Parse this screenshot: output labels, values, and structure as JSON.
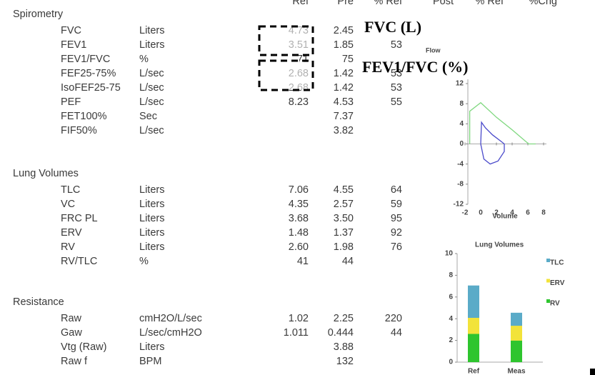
{
  "header": [
    "Ref",
    "Pre",
    "% Ref",
    "Post",
    "% Ref",
    "%Chg"
  ],
  "sections": [
    {
      "title": "Spirometry",
      "rows": [
        [
          "FVC",
          "Liters",
          "4.73",
          "2.45",
          null
        ],
        [
          "FEV1",
          "Liters",
          "3.51",
          "1.85",
          "53"
        ],
        [
          "FEV1/FVC",
          "%",
          "71",
          "75",
          null
        ],
        [
          "FEF25-75%",
          "L/sec",
          "2.68",
          "1.42",
          "53"
        ],
        [
          "IsoFEF25-75",
          "L/sec",
          "2.68",
          "1.42",
          "53"
        ],
        [
          "PEF",
          "L/sec",
          "8.23",
          "4.53",
          "55"
        ],
        [
          "FET100%",
          "Sec",
          null,
          "7.37",
          null
        ],
        [
          "FIF50%",
          "L/sec",
          null,
          "3.82",
          null
        ]
      ]
    },
    {
      "title": "Lung Volumes",
      "rows": [
        [
          "TLC",
          "Liters",
          "7.06",
          "4.55",
          "64"
        ],
        [
          "VC",
          "Liters",
          "4.35",
          "2.57",
          "59"
        ],
        [
          "FRC PL",
          "Liters",
          "3.68",
          "3.50",
          "95"
        ],
        [
          "ERV",
          "Liters",
          "1.48",
          "1.37",
          "92"
        ],
        [
          "RV",
          "Liters",
          "2.60",
          "1.98",
          "76"
        ],
        [
          "RV/TLC",
          "%",
          "41",
          "44",
          null
        ]
      ]
    },
    {
      "title": "Resistance",
      "rows": [
        [
          "Raw",
          "cmH2O/L/sec",
          "1.02",
          "2.25",
          "220"
        ],
        [
          "Gaw",
          "L/sec/cmH2O",
          "1.011",
          "0.444",
          "44"
        ],
        [
          "Vtg (Raw)",
          "Liters",
          null,
          "3.88",
          null
        ],
        [
          "Raw f",
          "BPM",
          null,
          "132",
          null
        ]
      ]
    }
  ],
  "annotations": [
    "FVC (L)",
    "FEV1/FVC (%)"
  ],
  "flow_volume": {
    "type": "line",
    "y_label": "Flow",
    "x_label": "Volume",
    "xlim": [
      -2,
      8
    ],
    "ylim": [
      -12,
      12
    ],
    "xticks": [
      -2,
      0,
      2,
      4,
      6,
      8
    ],
    "yticks": [
      12,
      8,
      4,
      0,
      -4,
      -8,
      -12
    ],
    "series": [
      {
        "color": "#7fd87f",
        "x": [
          -1.4,
          -1.4,
          0,
          2,
          4,
          6.1,
          7
        ],
        "values": [
          0,
          6.5,
          8.2,
          5.3,
          2.8,
          0,
          0
        ]
      },
      {
        "color": "#4a4acb",
        "x": [
          0,
          0.1,
          0.6,
          1.5,
          2.6,
          3,
          3,
          2.2,
          1.2,
          0.4,
          0
        ],
        "values": [
          0,
          4.3,
          3.2,
          1.8,
          0.5,
          0,
          -1.5,
          -3.4,
          -4,
          -3,
          0
        ]
      }
    ]
  },
  "lung_volumes_chart": {
    "type": "bar",
    "title": "Lung Volumes",
    "categories": [
      "Ref",
      "Meas"
    ],
    "ylim": [
      0,
      10
    ],
    "yticks": [
      0,
      2,
      4,
      6,
      8,
      10
    ],
    "series": [
      {
        "name": "TLC",
        "color": "#5aabc8",
        "values": [
          7.06,
          4.55
        ]
      },
      {
        "name": "ERV",
        "color": "#f2e33a",
        "values": [
          1.48,
          1.37
        ]
      },
      {
        "name": "RV",
        "color": "#2ec52e",
        "values": [
          2.6,
          1.98
        ]
      }
    ]
  }
}
